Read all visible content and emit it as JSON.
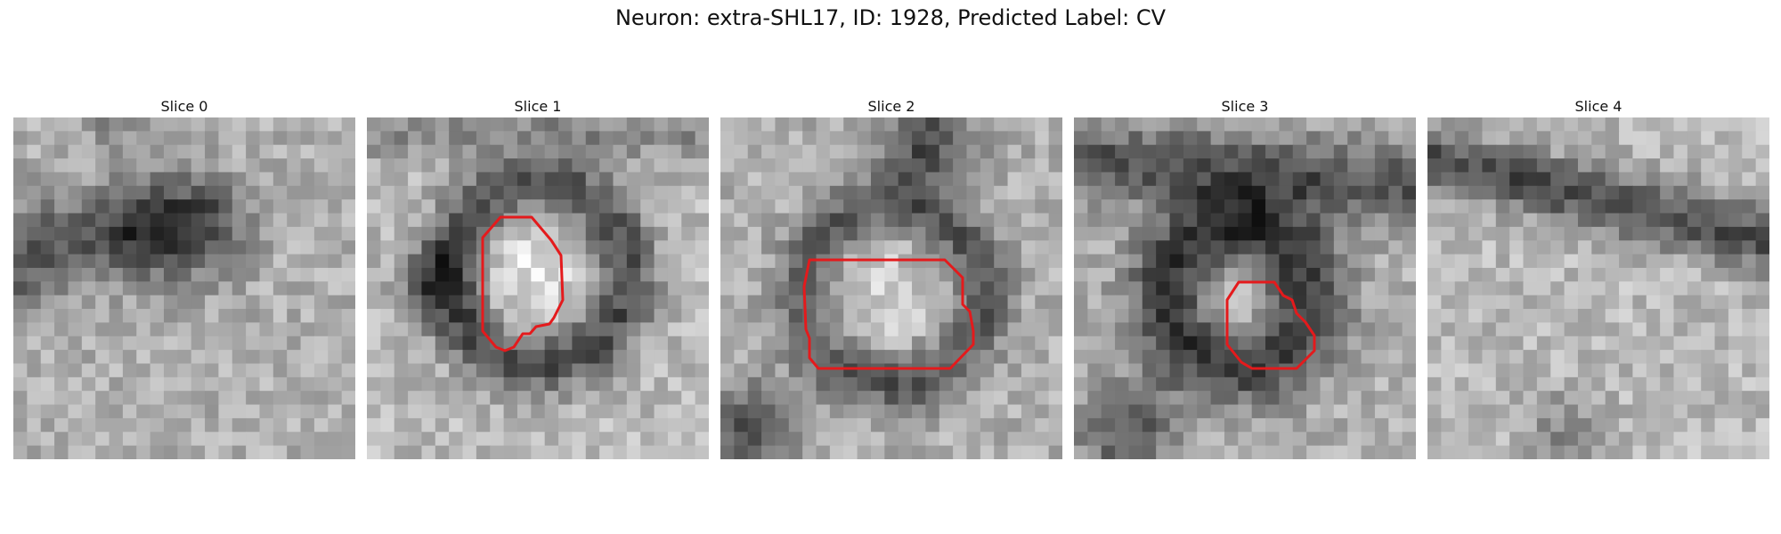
{
  "figure": {
    "title": "Neuron: extra-SHL17, ID: 1928, Predicted Label: CV"
  },
  "panels": [
    {
      "label": "Slice 0",
      "has_contour": false
    },
    {
      "label": "Slice 1",
      "has_contour": true
    },
    {
      "label": "Slice 2",
      "has_contour": true
    },
    {
      "label": "Slice 3",
      "has_contour": true
    },
    {
      "label": "Slice 4",
      "has_contour": false
    }
  ],
  "colors": {
    "contour": "#e41a1c"
  }
}
